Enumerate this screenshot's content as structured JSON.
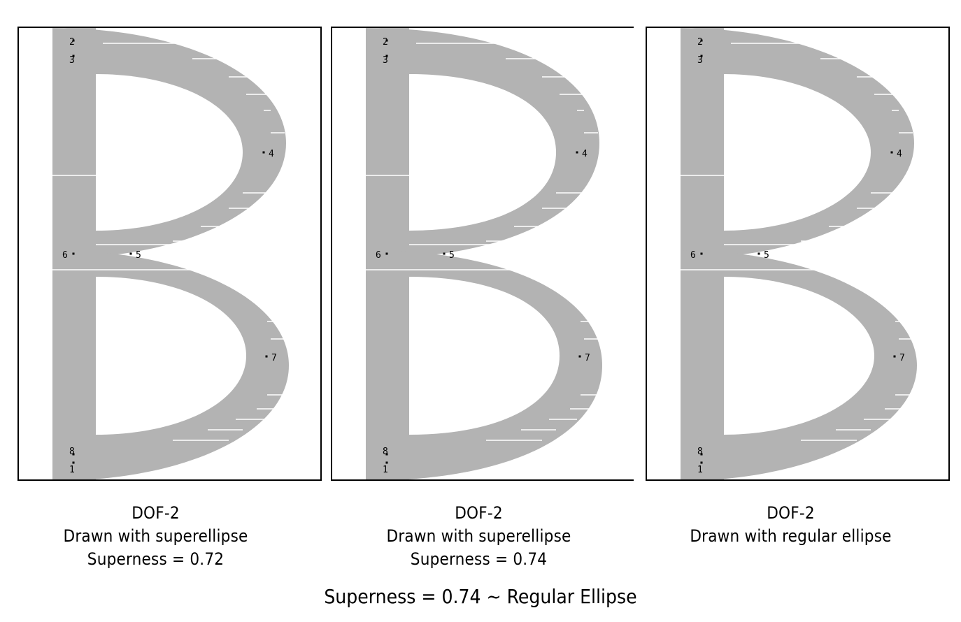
{
  "colors": {
    "stroke": "#b3b3b3",
    "background": "#ffffff",
    "point": "#000000",
    "frame": "#000000"
  },
  "panels": [
    {
      "superness": 0.72,
      "caption": [
        "DOF-2",
        "Drawn with superellipse",
        "Superness = 0.72"
      ],
      "point_labels": {
        "p23": [
          "2",
          "3"
        ],
        "p4": "4",
        "p5": "5",
        "p6": "6",
        "p7": "7",
        "p81": [
          "8",
          "1"
        ]
      }
    },
    {
      "superness": 0.74,
      "caption": [
        "DOF-2",
        "Drawn with superellipse",
        "Superness = 0.74"
      ],
      "point_labels": {
        "p23": [
          "2",
          "3"
        ],
        "p4": "4",
        "p5": "5",
        "p6": "6",
        "p7": "7",
        "p81": [
          "8",
          "1"
        ]
      }
    },
    {
      "superness": null,
      "caption": [
        "DOF-2",
        "Drawn with regular ellipse"
      ],
      "point_labels": {
        "p23": [
          "2",
          "3"
        ],
        "p4": "4",
        "p5": "5",
        "p6": "6",
        "p7": "7",
        "p81": [
          "8",
          "1"
        ]
      }
    }
  ],
  "conclusion": "Superness = 0.74 ~ Regular Ellipse"
}
